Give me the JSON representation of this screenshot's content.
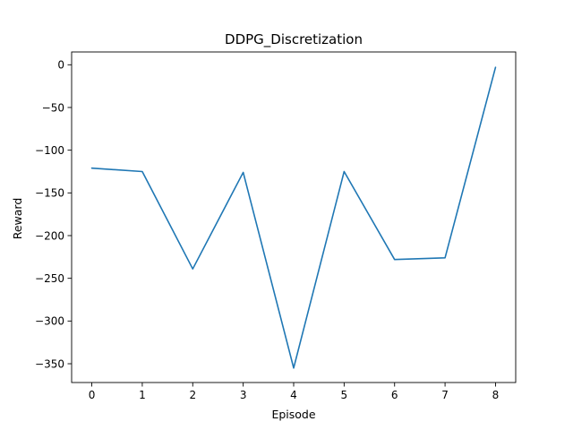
{
  "chart_data": {
    "type": "line",
    "title": "DDPG_Discretization",
    "xlabel": "Episode",
    "ylabel": "Reward",
    "x": [
      0,
      1,
      2,
      3,
      4,
      5,
      6,
      7,
      8
    ],
    "series": [
      {
        "values": [
          -121,
          -125,
          -239,
          -126,
          -355,
          -125,
          -228,
          -226,
          -3
        ],
        "color": "#1f77b4"
      }
    ],
    "xlim": [
      -0.4,
      8.4
    ],
    "ylim": [
      -372,
      15
    ],
    "xticks": [
      0,
      1,
      2,
      3,
      4,
      5,
      6,
      7,
      8
    ],
    "xtick_labels": [
      "0",
      "1",
      "2",
      "3",
      "4",
      "5",
      "6",
      "7",
      "8"
    ],
    "yticks": [
      0,
      -50,
      -100,
      -150,
      -200,
      -250,
      -300,
      -350
    ],
    "ytick_labels": [
      "0",
      "−50",
      "−100",
      "−150",
      "−200",
      "−250",
      "−300",
      "−350"
    ],
    "grid": false,
    "legend": "none"
  }
}
